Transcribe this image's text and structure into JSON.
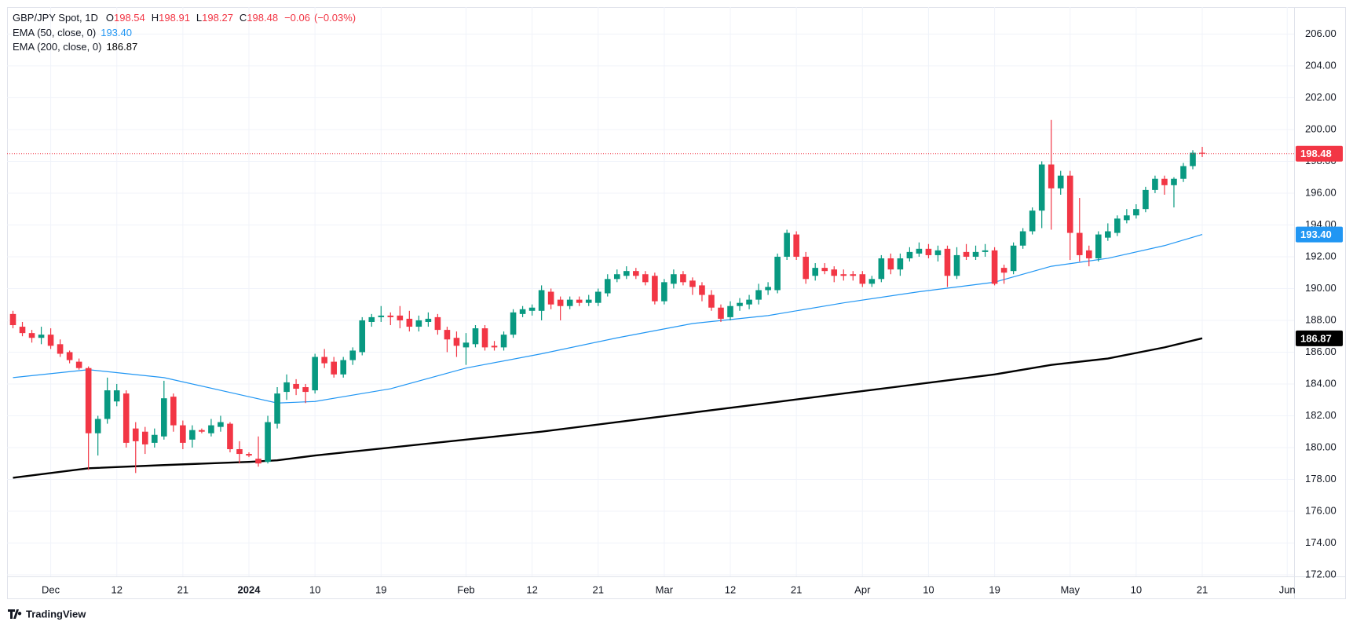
{
  "chart_data": {
    "type": "candlestick",
    "title": "GBP/JPY Spot, 1D",
    "ohlc_labels": [
      "O",
      "H",
      "L",
      "C"
    ],
    "change": {
      "value": -0.06,
      "label": "−0.06"
    },
    "change_pct": {
      "value": -0.03,
      "label": "(−0.03%)"
    },
    "x": [
      "2023-11-27",
      "2023-11-28",
      "2023-11-29",
      "2023-11-30",
      "2023-12-01",
      "2023-12-04",
      "2023-12-05",
      "2023-12-06",
      "2023-12-07",
      "2023-12-08",
      "2023-12-11",
      "2023-12-12",
      "2023-12-13",
      "2023-12-14",
      "2023-12-15",
      "2023-12-18",
      "2023-12-19",
      "2023-12-20",
      "2023-12-21",
      "2023-12-22",
      "2023-12-25",
      "2023-12-26",
      "2023-12-27",
      "2023-12-28",
      "2023-12-29",
      "2024-01-01",
      "2024-01-02",
      "2024-01-03",
      "2024-01-04",
      "2024-01-05",
      "2024-01-08",
      "2024-01-09",
      "2024-01-10",
      "2024-01-11",
      "2024-01-12",
      "2024-01-15",
      "2024-01-16",
      "2024-01-17",
      "2024-01-18",
      "2024-01-19",
      "2024-01-22",
      "2024-01-23",
      "2024-01-24",
      "2024-01-25",
      "2024-01-26",
      "2024-01-29",
      "2024-01-30",
      "2024-01-31",
      "2024-02-01",
      "2024-02-02",
      "2024-02-05",
      "2024-02-06",
      "2024-02-07",
      "2024-02-08",
      "2024-02-09",
      "2024-02-12",
      "2024-02-13",
      "2024-02-14",
      "2024-02-15",
      "2024-02-16",
      "2024-02-19",
      "2024-02-20",
      "2024-02-21",
      "2024-02-22",
      "2024-02-23",
      "2024-02-26",
      "2024-02-27",
      "2024-02-28",
      "2024-02-29",
      "2024-03-01",
      "2024-03-04",
      "2024-03-05",
      "2024-03-06",
      "2024-03-07",
      "2024-03-08",
      "2024-03-11",
      "2024-03-12",
      "2024-03-13",
      "2024-03-14",
      "2024-03-15",
      "2024-03-18",
      "2024-03-19",
      "2024-03-20",
      "2024-03-21",
      "2024-03-22",
      "2024-03-25",
      "2024-03-26",
      "2024-03-27",
      "2024-03-28",
      "2024-03-29",
      "2024-04-01",
      "2024-04-02",
      "2024-04-03",
      "2024-04-04",
      "2024-04-05",
      "2024-04-08",
      "2024-04-09",
      "2024-04-10",
      "2024-04-11",
      "2024-04-12",
      "2024-04-15",
      "2024-04-16",
      "2024-04-17",
      "2024-04-18",
      "2024-04-19",
      "2024-04-22",
      "2024-04-23",
      "2024-04-24",
      "2024-04-25",
      "2024-04-26",
      "2024-04-29",
      "2024-04-30",
      "2024-05-01",
      "2024-05-02",
      "2024-05-03",
      "2024-05-06",
      "2024-05-07",
      "2024-05-08",
      "2024-05-09",
      "2024-05-10",
      "2024-05-13",
      "2024-05-14",
      "2024-05-15",
      "2024-05-16",
      "2024-05-17",
      "2024-05-20",
      "2024-05-21"
    ],
    "open": [
      188.4,
      187.6,
      187.2,
      186.9,
      187.1,
      186.5,
      186.0,
      185.4,
      185.0,
      180.9,
      181.8,
      182.9,
      183.4,
      181.2,
      181.0,
      180.3,
      180.7,
      183.2,
      181.4,
      180.5,
      181.1,
      180.9,
      181.3,
      181.5,
      179.9,
      179.6,
      179.3,
      179.1,
      181.5,
      183.5,
      184.0,
      183.8,
      183.6,
      185.7,
      185.4,
      184.6,
      185.5,
      186.0,
      187.9,
      188.2,
      188.3,
      188.3,
      188.1,
      187.6,
      187.9,
      188.2,
      187.4,
      186.9,
      186.3,
      186.5,
      187.5,
      186.4,
      186.3,
      187.1,
      188.4,
      188.6,
      188.6,
      189.8,
      189.3,
      188.9,
      189.3,
      189.1,
      189.1,
      189.7,
      190.6,
      190.8,
      191.1,
      190.9,
      190.8,
      189.2,
      190.3,
      190.9,
      190.5,
      190.2,
      189.6,
      188.8,
      188.2,
      188.9,
      189.0,
      189.3,
      189.9,
      189.9,
      192.0,
      193.4,
      192.0,
      190.8,
      191.3,
      191.2,
      190.9,
      190.9,
      190.9,
      190.3,
      190.6,
      191.9,
      191.2,
      191.9,
      192.2,
      192.5,
      192.1,
      192.5,
      190.8,
      192.3,
      192.0,
      192.3,
      192.4,
      191.3,
      191.1,
      192.7,
      193.6,
      194.9,
      197.8,
      196.3,
      197.1,
      193.5,
      192.4,
      191.9,
      193.2,
      193.5,
      194.3,
      194.6,
      195.0,
      196.2,
      196.9,
      196.5,
      196.9,
      197.7,
      198.54
    ],
    "high": [
      188.6,
      187.9,
      187.4,
      187.6,
      187.5,
      186.8,
      186.1,
      185.6,
      185.1,
      182.0,
      184.4,
      184.0,
      183.6,
      181.6,
      181.3,
      181.2,
      184.2,
      183.4,
      181.7,
      181.4,
      181.2,
      181.8,
      182.0,
      181.6,
      180.4,
      179.7,
      180.7,
      182.0,
      183.8,
      184.6,
      184.3,
      184.0,
      185.9,
      186.2,
      185.7,
      185.7,
      186.3,
      188.2,
      188.4,
      188.9,
      188.5,
      188.9,
      188.6,
      188.3,
      188.5,
      188.4,
      187.6,
      187.3,
      187.2,
      187.7,
      187.7,
      186.7,
      187.3,
      188.7,
      188.9,
      189.0,
      190.2,
      190.0,
      189.5,
      189.5,
      189.5,
      189.6,
      190.0,
      190.9,
      191.2,
      191.4,
      191.3,
      191.1,
      191.0,
      190.6,
      191.2,
      191.1,
      190.7,
      190.4,
      189.9,
      189.0,
      189.2,
      189.4,
      189.6,
      190.3,
      190.4,
      192.2,
      193.7,
      193.6,
      192.3,
      191.6,
      191.6,
      191.4,
      191.2,
      191.1,
      191.1,
      190.8,
      192.1,
      192.2,
      192.2,
      192.6,
      192.9,
      192.8,
      192.7,
      192.7,
      192.6,
      192.8,
      192.7,
      192.8,
      192.6,
      191.5,
      192.9,
      193.8,
      195.1,
      198.0,
      200.6,
      197.4,
      197.4,
      195.7,
      192.7,
      193.6,
      194.1,
      194.6,
      195.0,
      195.3,
      196.4,
      197.1,
      197.1,
      197.0,
      197.9,
      198.7,
      198.91
    ],
    "low": [
      187.5,
      187.0,
      186.6,
      186.5,
      186.2,
      185.7,
      185.3,
      184.9,
      178.6,
      179.5,
      181.5,
      182.6,
      180.0,
      178.4,
      179.6,
      180.0,
      180.5,
      181.0,
      179.9,
      180.0,
      180.9,
      180.7,
      181.0,
      179.7,
      179.0,
      179.4,
      178.8,
      179.0,
      181.2,
      183.0,
      183.3,
      182.8,
      183.4,
      185.0,
      184.4,
      184.4,
      185.2,
      185.8,
      187.6,
      187.9,
      187.7,
      187.5,
      187.3,
      187.3,
      187.6,
      187.1,
      186.0,
      185.7,
      185.2,
      186.3,
      186.1,
      186.1,
      186.1,
      186.9,
      188.2,
      188.3,
      188.0,
      188.7,
      188.0,
      188.7,
      188.9,
      188.9,
      188.9,
      189.5,
      190.4,
      190.6,
      190.6,
      190.2,
      189.0,
      189.0,
      190.0,
      190.2,
      189.6,
      189.2,
      188.6,
      187.9,
      188.0,
      188.6,
      188.7,
      189.0,
      189.6,
      189.7,
      191.8,
      191.8,
      190.3,
      190.5,
      190.9,
      190.4,
      190.5,
      190.5,
      190.1,
      190.1,
      190.4,
      190.9,
      190.8,
      191.7,
      192.0,
      191.9,
      191.7,
      190.1,
      190.6,
      191.8,
      191.8,
      192.0,
      190.2,
      190.3,
      190.9,
      192.5,
      193.4,
      193.8,
      193.7,
      195.9,
      191.8,
      191.7,
      191.4,
      191.7,
      193.0,
      193.3,
      194.1,
      194.4,
      194.8,
      196.0,
      195.9,
      195.1,
      196.7,
      197.5,
      198.27
    ],
    "close": [
      187.7,
      187.2,
      186.9,
      187.1,
      186.4,
      185.9,
      185.5,
      185.0,
      180.9,
      181.8,
      183.6,
      183.6,
      180.3,
      180.4,
      180.2,
      180.8,
      183.1,
      181.4,
      180.3,
      181.1,
      181.0,
      181.4,
      181.6,
      179.9,
      179.6,
      179.5,
      179.0,
      181.6,
      183.4,
      184.1,
      183.7,
      183.5,
      185.7,
      185.3,
      184.6,
      185.5,
      186.1,
      188.0,
      188.2,
      188.3,
      188.2,
      188.0,
      187.6,
      188.0,
      188.1,
      187.4,
      186.8,
      186.4,
      186.6,
      187.5,
      186.3,
      186.3,
      187.1,
      188.5,
      188.7,
      188.8,
      189.9,
      189.0,
      188.9,
      189.3,
      189.1,
      189.3,
      189.8,
      190.6,
      190.9,
      191.1,
      190.8,
      190.4,
      189.2,
      190.4,
      190.9,
      190.4,
      190.1,
      189.6,
      188.8,
      188.1,
      188.9,
      189.1,
      189.3,
      189.9,
      190.1,
      192.0,
      193.5,
      192.0,
      190.6,
      191.3,
      191.1,
      190.8,
      190.8,
      190.8,
      190.3,
      190.6,
      191.9,
      191.2,
      191.9,
      192.3,
      192.5,
      192.1,
      192.4,
      190.8,
      192.1,
      192.0,
      192.3,
      192.4,
      190.3,
      191.0,
      192.7,
      193.6,
      194.9,
      197.8,
      196.3,
      197.1,
      193.5,
      192.1,
      191.9,
      193.4,
      193.6,
      194.4,
      194.6,
      195.0,
      196.2,
      196.9,
      196.5,
      196.9,
      197.7,
      198.54,
      198.48
    ],
    "up_color": "#089981",
    "down_color": "#f23645",
    "series": [
      {
        "name": "EMA (50, close, 0)",
        "color": "#2196f3",
        "x": [
          "2023-11-27",
          "2023-12-07",
          "2023-12-19",
          "2024-01-01",
          "2024-01-04",
          "2024-01-10",
          "2024-01-22",
          "2024-02-01",
          "2024-02-13",
          "2024-02-23",
          "2024-03-06",
          "2024-03-18",
          "2024-03-28",
          "2024-04-09",
          "2024-04-19",
          "2024-04-29",
          "2024-05-07",
          "2024-05-15",
          "2024-05-21"
        ],
        "values": [
          184.4,
          184.9,
          184.4,
          183.2,
          182.8,
          182.9,
          183.7,
          185.0,
          185.9,
          186.9,
          187.8,
          188.3,
          189.1,
          189.8,
          190.4,
          191.4,
          191.9,
          192.7,
          193.4
        ],
        "value_labels": [
          null,
          null,
          null,
          null,
          null,
          null,
          null,
          null,
          null,
          null,
          null,
          null,
          null,
          null,
          null,
          null,
          null,
          null,
          "193.40"
        ]
      },
      {
        "name": "EMA (200, close, 0)",
        "color": "#000000",
        "x": [
          "2023-11-27",
          "2023-12-07",
          "2023-12-19",
          "2024-01-01",
          "2024-01-04",
          "2024-01-10",
          "2024-01-22",
          "2024-02-01",
          "2024-02-13",
          "2024-02-23",
          "2024-03-06",
          "2024-03-18",
          "2024-03-28",
          "2024-04-09",
          "2024-04-19",
          "2024-04-29",
          "2024-05-07",
          "2024-05-15",
          "2024-05-21"
        ],
        "values": [
          178.1,
          178.7,
          178.9,
          179.1,
          179.2,
          179.5,
          180.0,
          180.5,
          181.0,
          181.6,
          182.2,
          182.8,
          183.4,
          184.0,
          184.6,
          185.2,
          185.6,
          186.3,
          186.87
        ]
      }
    ],
    "ylim": [
      171.9,
      207.7
    ],
    "yticks": [
      {
        "value": 172,
        "label": "172.00"
      },
      {
        "value": 174,
        "label": "174.00"
      },
      {
        "value": 176,
        "label": "176.00"
      },
      {
        "value": 178,
        "label": "178.00"
      },
      {
        "value": 180,
        "label": "180.00"
      },
      {
        "value": 182,
        "label": "182.00"
      },
      {
        "value": 184,
        "label": "184.00"
      },
      {
        "value": 186,
        "label": "186.00"
      },
      {
        "value": 188,
        "label": "188.00"
      },
      {
        "value": 190,
        "label": "190.00"
      },
      {
        "value": 192,
        "label": "192.00"
      },
      {
        "value": 194,
        "label": "194.00"
      },
      {
        "value": 196,
        "label": "196.00"
      },
      {
        "value": 198,
        "label": "198.00"
      },
      {
        "value": 200,
        "label": "200.00"
      },
      {
        "value": 202,
        "label": "202.00"
      },
      {
        "value": 204,
        "label": "204.00"
      },
      {
        "value": 206,
        "label": "206.00"
      }
    ],
    "xticks": [
      {
        "value": "2023-12-01",
        "label": "Dec"
      },
      {
        "value": "2023-12-12",
        "label": "12"
      },
      {
        "value": "2023-12-21",
        "label": "21"
      },
      {
        "value": "2024-01-01",
        "label": "2024"
      },
      {
        "value": "2024-01-10",
        "label": "10"
      },
      {
        "value": "2024-01-19",
        "label": "19"
      },
      {
        "value": "2024-02-01",
        "label": "Feb"
      },
      {
        "value": "2024-02-12",
        "label": "12"
      },
      {
        "value": "2024-02-21",
        "label": "21"
      },
      {
        "value": "2024-03-01",
        "label": "Mar"
      },
      {
        "value": "2024-03-12",
        "label": "12"
      },
      {
        "value": "2024-03-21",
        "label": "21"
      },
      {
        "value": "2024-04-01",
        "label": "Apr"
      },
      {
        "value": "2024-04-10",
        "label": "10"
      },
      {
        "value": "2024-04-19",
        "label": "19"
      },
      {
        "value": "2024-05-01",
        "label": "May"
      },
      {
        "value": "2024-05-10",
        "label": "10"
      },
      {
        "value": "2024-05-21",
        "label": "21"
      },
      {
        "value": "2024-06-03",
        "label": "Jun"
      }
    ],
    "grid": true,
    "last_price_line": true,
    "branding": "TradingView"
  }
}
